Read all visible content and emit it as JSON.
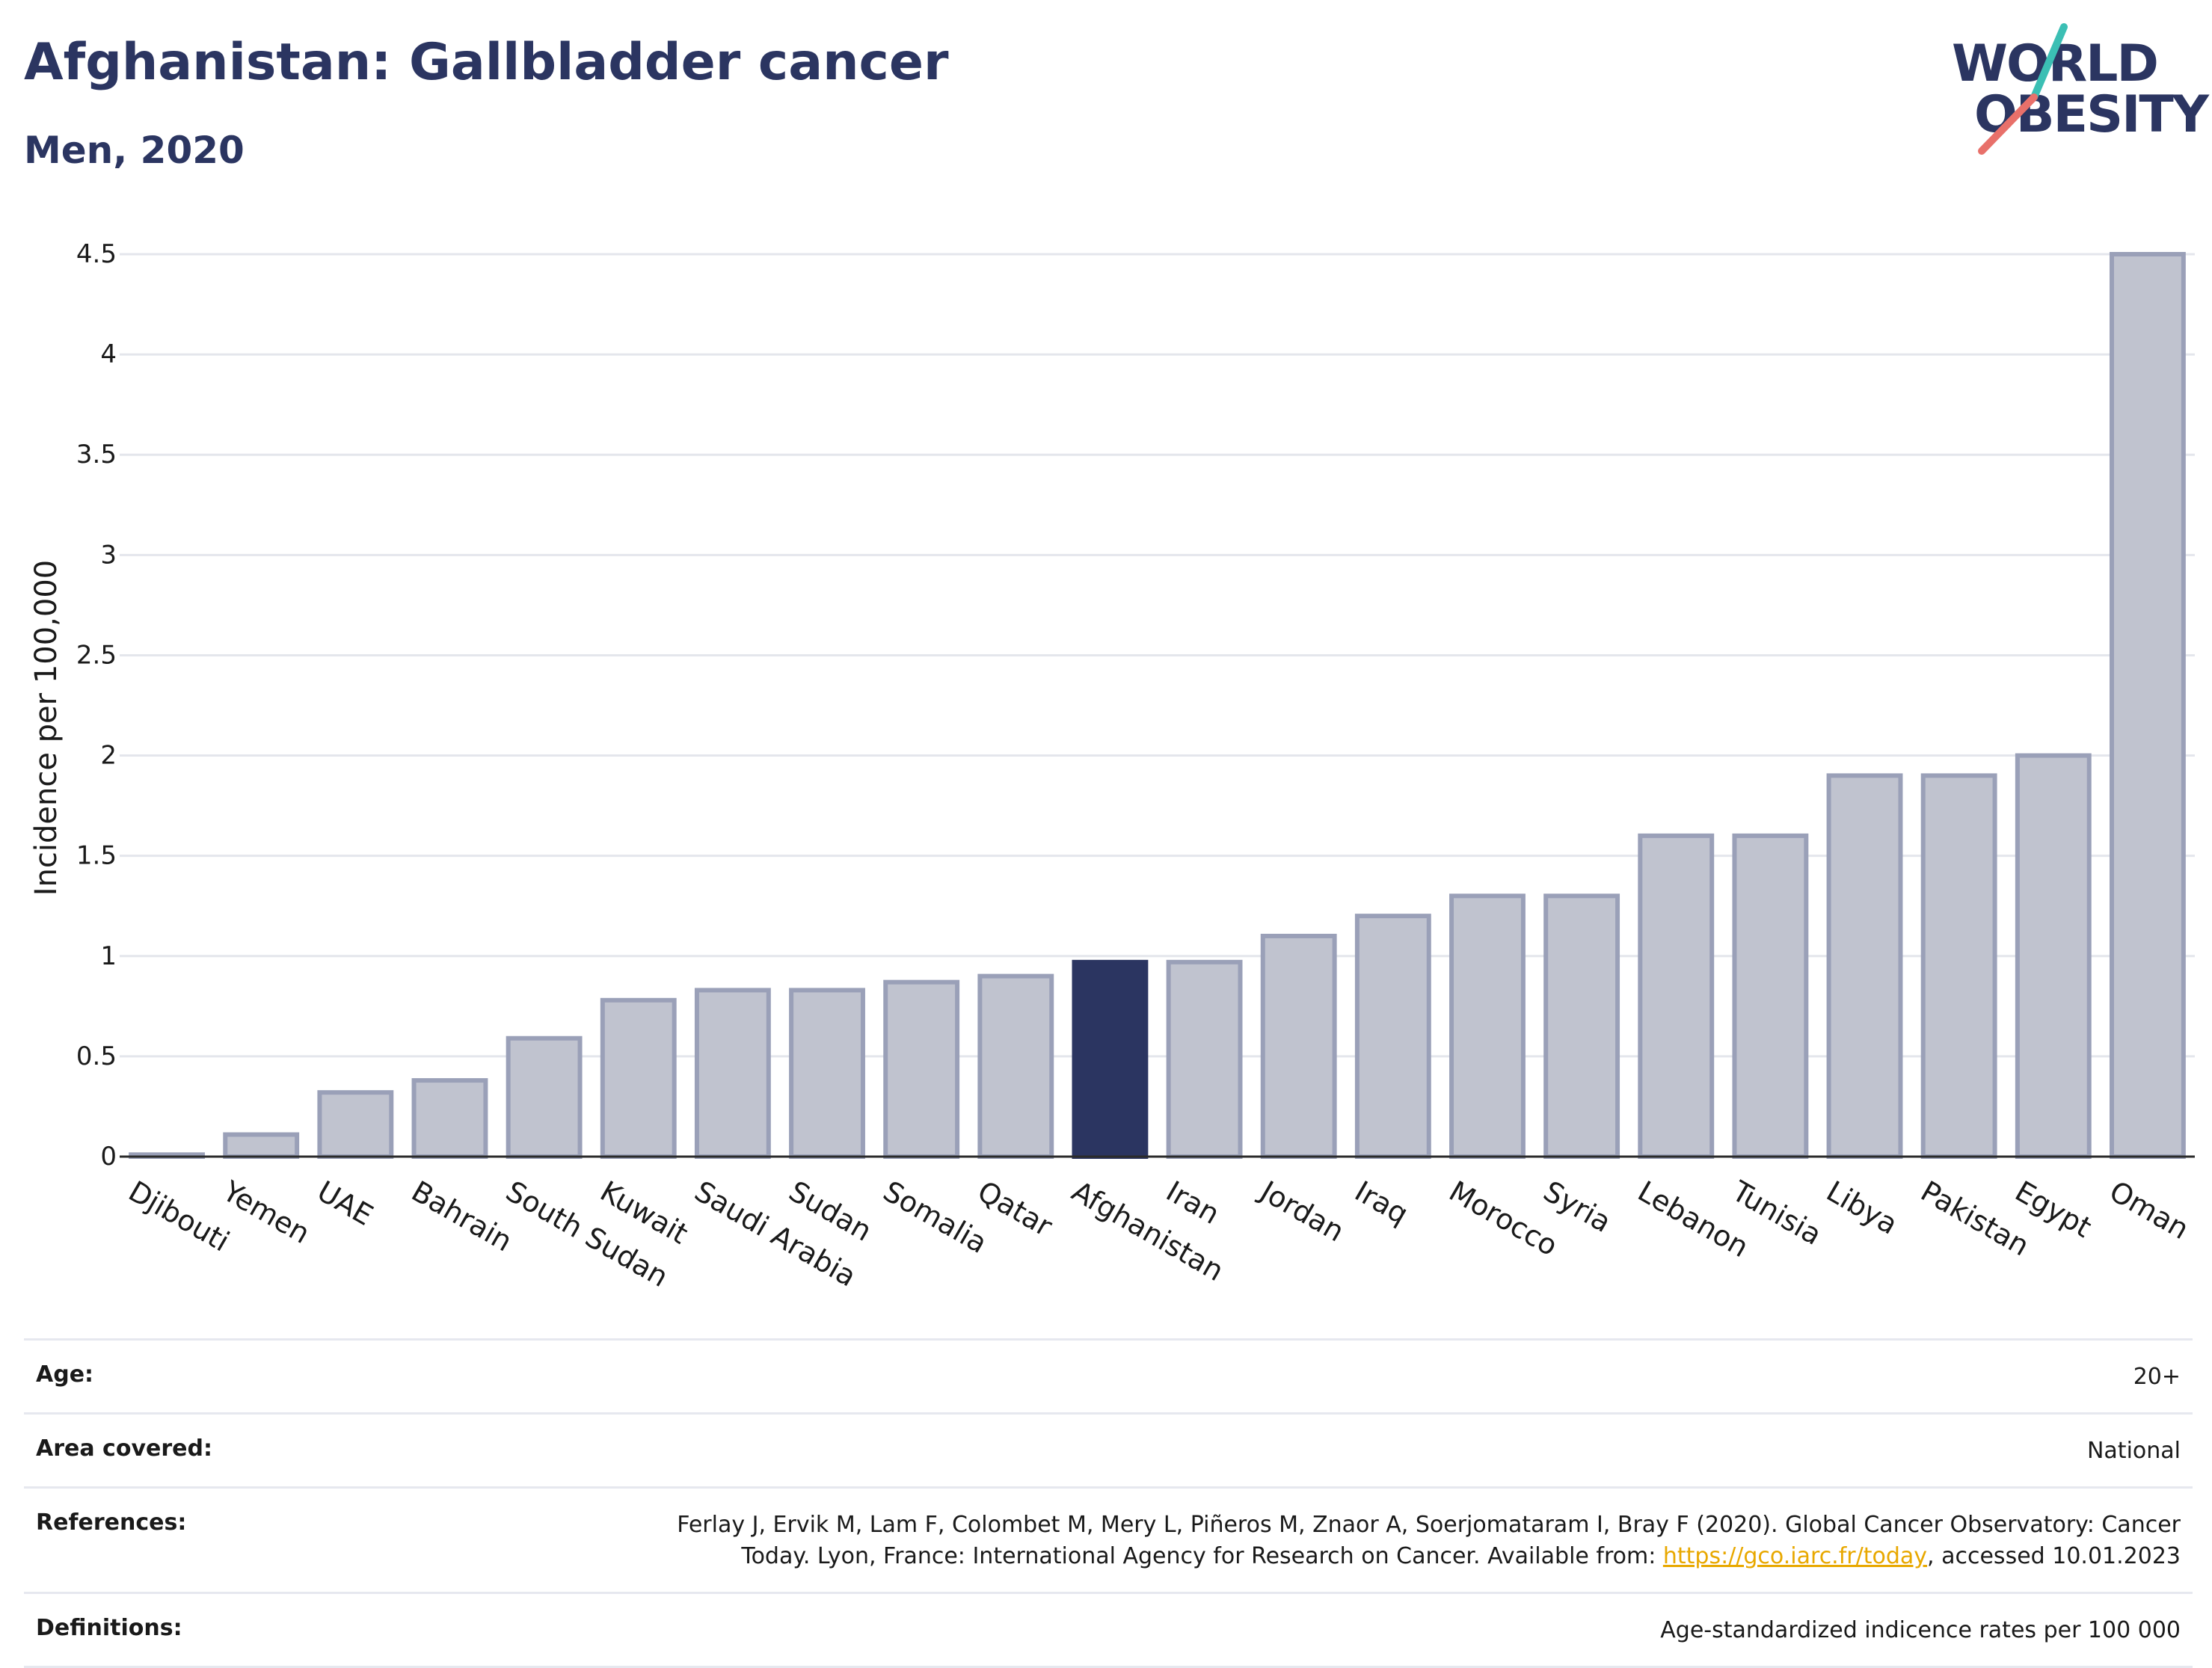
{
  "header": {
    "title": "Afghanistan: Gallbladder cancer",
    "subtitle": "Men, 2020"
  },
  "logo": {
    "line1": "WORLD",
    "line2": "OBESITY",
    "slash_colors": [
      "#3bbfb4",
      "#e8706a"
    ]
  },
  "chart_data": {
    "type": "bar",
    "categories": [
      "Djibouti",
      "Yemen",
      "UAE",
      "Bahrain",
      "South Sudan",
      "Kuwait",
      "Saudi Arabia",
      "Sudan",
      "Somalia",
      "Qatar",
      "Afghanistan",
      "Iran",
      "Jordan",
      "Iraq",
      "Morocco",
      "Syria",
      "Lebanon",
      "Tunisia",
      "Libya",
      "Pakistan",
      "Egypt",
      "Oman"
    ],
    "values": [
      0.01,
      0.11,
      0.32,
      0.38,
      0.59,
      0.78,
      0.83,
      0.83,
      0.87,
      0.9,
      0.97,
      0.97,
      1.1,
      1.2,
      1.3,
      1.3,
      1.6,
      1.6,
      1.9,
      1.9,
      2.0,
      4.5
    ],
    "highlight": "Afghanistan",
    "ylabel": "Incidence per 100,000",
    "ylim": [
      0,
      4.5
    ],
    "yticks": [
      "0",
      "0.5",
      "1",
      "1.5",
      "2",
      "2.5",
      "3",
      "3.5",
      "4",
      "4.5"
    ],
    "grid": true,
    "colors": {
      "bar": "#c0c3cf",
      "bar_border": "#9aa0b8",
      "highlight": "#2b3561"
    }
  },
  "meta": {
    "age_label": "Age:",
    "age_value": "20+",
    "area_label": "Area covered:",
    "area_value": "National",
    "references_label": "References:",
    "references_line1": "Ferlay J, Ervik M, Lam F, Colombet M, Mery L, Piñeros M, Znaor A, Soerjomataram I, Bray F (2020). Global Cancer Observatory: Cancer",
    "references_line2_pre": "Today. Lyon, France: International Agency for Research on Cancer. Available from: ",
    "references_link": "https://gco.iarc.fr/today",
    "references_line2_post": ", accessed 10.01.2023",
    "definitions_label": "Definitions:",
    "definitions_value": "Age-standardized indicence rates per 100 000"
  }
}
